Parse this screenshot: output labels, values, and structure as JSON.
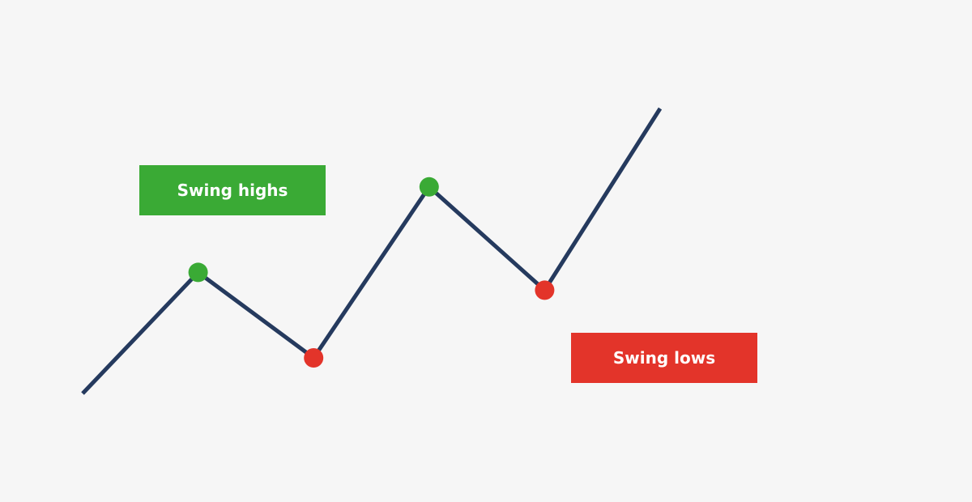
{
  "colors": {
    "background": "#f6f6f6",
    "line": "#253a5e",
    "swing_high": "#3aaa35",
    "swing_low": "#e3342a"
  },
  "labels": {
    "swing_highs": "Swing highs",
    "swing_lows": "Swing lows"
  },
  "price_path": [
    {
      "step": 0,
      "price": 0
    },
    {
      "step": 1,
      "price": 34,
      "marker": "swing_high"
    },
    {
      "step": 2,
      "price": 10,
      "marker": "swing_low"
    },
    {
      "step": 3,
      "price": 58,
      "marker": "swing_high"
    },
    {
      "step": 4,
      "price": 29,
      "marker": "swing_low"
    },
    {
      "step": 5,
      "price": 80
    }
  ]
}
